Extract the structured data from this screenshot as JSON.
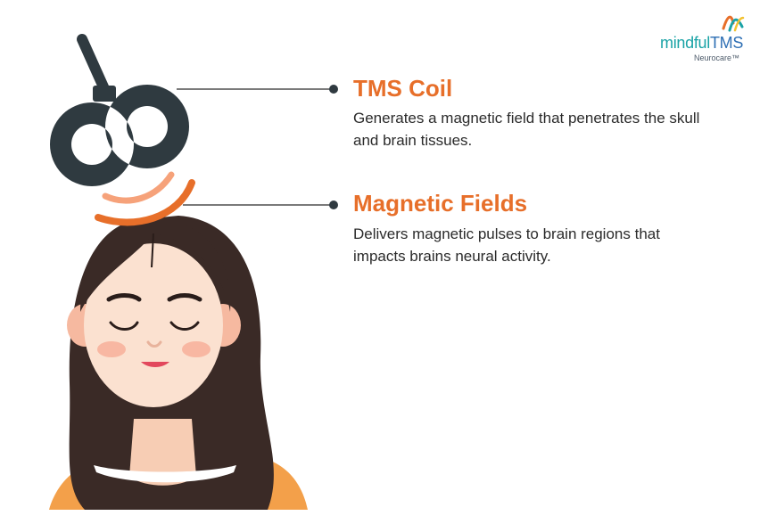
{
  "logo": {
    "brand_part1": "mindful",
    "brand_part2": "TMS",
    "subtitle": "Neurocare™"
  },
  "callouts": [
    {
      "title": "TMS Coil",
      "description": "Generates a magnetic field that penetrates the skull and brain tissues."
    },
    {
      "title": "Magnetic Fields",
      "description": "Delivers magnetic pulses to brain regions that impacts brains neural activity."
    }
  ],
  "colors": {
    "accent": "#e76f2a",
    "coil": "#2f3a40",
    "hair": "#3a2a26",
    "skin": "#fbe1d0",
    "shirt": "#f3a04a",
    "text": "#2b2b2b",
    "logo_teal": "#1aa3a6",
    "logo_blue": "#2e6fb4"
  }
}
